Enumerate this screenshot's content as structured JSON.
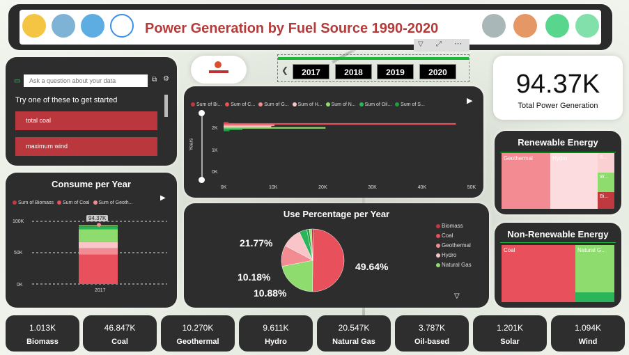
{
  "header": {
    "title": "Power Generation by Fuel Source 1990-2020"
  },
  "qa": {
    "placeholder": "Ask a question about your data",
    "prompt": "Try one of these to get started",
    "suggestions": [
      "total coal",
      "maximum wind"
    ]
  },
  "years": [
    "2017",
    "2018",
    "2019",
    "2020"
  ],
  "kpi": {
    "value": "94.37K",
    "label": "Total Power Generation"
  },
  "bar_chart": {
    "legend": [
      "Sum of Bi...",
      "Sum of C...",
      "Sum of G...",
      "Sum of H...",
      "Sum of N...",
      "Sum of Oil...",
      "Sum of S..."
    ],
    "ylabel": "Years",
    "yticks": [
      "2K",
      "1K",
      "0K"
    ],
    "xticks": [
      "0K",
      "10K",
      "20K",
      "30K",
      "40K",
      "50K"
    ]
  },
  "consume": {
    "title": "Consume per Year",
    "legend": [
      "Sum of Biomass",
      "Sum of Coal",
      "Sum of Geoth..."
    ],
    "yticks": [
      "100K",
      "50K",
      "0K"
    ],
    "xlabel": "2017",
    "total_label": "94.37K"
  },
  "pie": {
    "title": "Use Percentage per Year",
    "labels": [
      "49.64%",
      "21.77%",
      "10.18%",
      "10.88%"
    ],
    "legend": [
      "Biomass",
      "Coal",
      "Geothermal",
      "Hydro",
      "Natural Gas"
    ]
  },
  "renewable": {
    "title": "Renewable Energy",
    "cells": [
      "Geothermal",
      "Hydro",
      "S...",
      "W...",
      "Bi..."
    ]
  },
  "nonrenewable": {
    "title": "Non-Renewable Energy",
    "cells": [
      "Coal",
      "Natural G..."
    ]
  },
  "cards": [
    {
      "value": "1.013K",
      "name": "Biomass"
    },
    {
      "value": "46.847K",
      "name": "Coal"
    },
    {
      "value": "10.270K",
      "name": "Geothermal"
    },
    {
      "value": "9.611K",
      "name": "Hydro"
    },
    {
      "value": "20.547K",
      "name": "Natural Gas"
    },
    {
      "value": "3.787K",
      "name": "Oil-based"
    },
    {
      "value": "1.201K",
      "name": "Solar"
    },
    {
      "value": "1.094K",
      "name": "Wind"
    }
  ],
  "colors": {
    "coal": "#e8505b",
    "geothermal": "#f28b92",
    "hydro": "#f9c5c8",
    "gas": "#8fdc6e",
    "oil": "#2bb55a",
    "solar": "#1e9e3c",
    "biomass": "#c0393f"
  },
  "chart_data": [
    {
      "type": "bar",
      "title": "",
      "ylabel": "Years",
      "categories": [
        "2017"
      ],
      "series": [
        {
          "name": "Sum of Bi...",
          "values": [
            1013
          ]
        },
        {
          "name": "Sum of C...",
          "values": [
            46847
          ]
        },
        {
          "name": "Sum of G...",
          "values": [
            10270
          ]
        },
        {
          "name": "Sum of H...",
          "values": [
            9611
          ]
        },
        {
          "name": "Sum of N...",
          "values": [
            20547
          ]
        },
        {
          "name": "Sum of Oil...",
          "values": [
            3787
          ]
        },
        {
          "name": "Sum of S...",
          "values": [
            1201
          ]
        }
      ],
      "xlim": [
        0,
        50000
      ]
    },
    {
      "type": "bar",
      "title": "Consume per Year",
      "categories": [
        "2017"
      ],
      "series": [
        {
          "name": "Sum of Biomass",
          "values": [
            1013
          ]
        },
        {
          "name": "Sum of Coal",
          "values": [
            46847
          ]
        },
        {
          "name": "Sum of Geoth...",
          "values": [
            10270
          ]
        }
      ],
      "ylim": [
        0,
        100000
      ]
    },
    {
      "type": "pie",
      "title": "Use Percentage per Year",
      "categories": [
        "Coal",
        "Natural Gas",
        "Geothermal",
        "Hydro",
        "Oil-based",
        "Solar",
        "Wind",
        "Biomass"
      ],
      "values": [
        49.64,
        21.77,
        10.88,
        10.18,
        4.01,
        1.27,
        1.16,
        1.07
      ]
    }
  ]
}
